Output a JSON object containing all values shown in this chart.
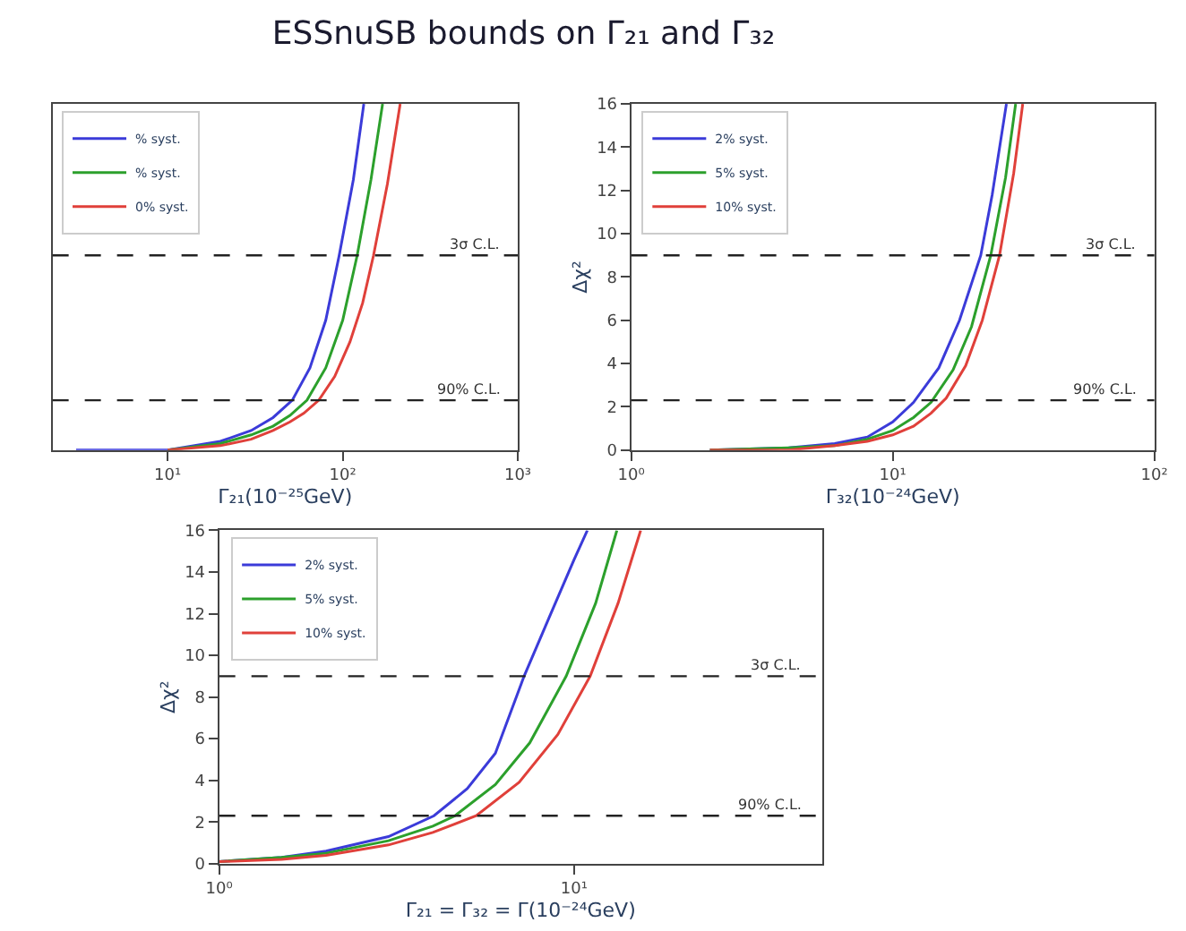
{
  "chart_data": [
    {
      "type": "line",
      "title": "ESSnuSB bounds on Γ₂₁ and Γ₃₂",
      "xlabel": "Γ₂₁(10⁻²⁵GeV)",
      "log": "x",
      "legend": "top left",
      "tick_labels": "x",
      "line_style": "solid",
      "marker": "none",
      "xlim": [
        2.2,
        1000
      ],
      "xticks": [
        {
          "value": 10,
          "label": "10¹"
        },
        {
          "value": 100,
          "label": "10²"
        },
        {
          "value": 1000,
          "label": "10³"
        }
      ],
      "ylim": [
        0,
        16
      ],
      "series": [
        {
          "name": "% syst.",
          "color": "#3b3bd9",
          "x": [
            3,
            10,
            20,
            30,
            40,
            51.5,
            65,
            80,
            95.5,
            115,
            132
          ],
          "values": [
            0,
            0,
            0.4,
            0.9,
            1.5,
            2.3,
            3.8,
            6,
            9,
            12.5,
            16
          ]
        },
        {
          "name": "% syst.",
          "color": "#2ca02c",
          "x": [
            10,
            20,
            30,
            40,
            50,
            62.5,
            80,
            100,
            121,
            145,
            169
          ],
          "values": [
            0,
            0.3,
            0.7,
            1.1,
            1.6,
            2.3,
            3.8,
            6,
            9,
            12.5,
            16
          ]
        },
        {
          "name": "0% syst.",
          "color": "#e0403a",
          "x": [
            10,
            20,
            30,
            40,
            50,
            60,
            73,
            90,
            110,
            130,
            150,
            180,
            213
          ],
          "values": [
            0,
            0.2,
            0.5,
            0.9,
            1.3,
            1.7,
            2.3,
            3.4,
            5,
            6.8,
            9,
            12.3,
            16
          ]
        }
      ],
      "ref_lines": [
        {
          "axis": "y",
          "value": 9,
          "label": "3σ C.L.",
          "line_style": "dashed",
          "color": "#222222"
        },
        {
          "axis": "y",
          "value": 2.3,
          "label": "90% C.L.",
          "line_style": "dashed",
          "color": "#222222"
        }
      ]
    },
    {
      "type": "line",
      "xlabel": "Γ₃₂(10⁻²⁴GeV)",
      "ylabel": "Δχ²",
      "log": "x",
      "legend": "top left",
      "line_style": "solid",
      "marker": "none",
      "xlim": [
        1,
        100
      ],
      "xticks": [
        {
          "value": 1,
          "label": "10⁰"
        },
        {
          "value": 10,
          "label": "10¹"
        },
        {
          "value": 100,
          "label": "10²"
        }
      ],
      "ylim": [
        0,
        16
      ],
      "yticks": [
        0,
        2,
        4,
        6,
        8,
        10,
        12,
        14,
        16
      ],
      "series": [
        {
          "name": "2% syst.",
          "color": "#3b3bd9",
          "x": [
            2,
            4,
            6,
            8,
            10,
            12,
            15,
            18,
            21.7,
            24,
            27.2
          ],
          "values": [
            0,
            0.1,
            0.3,
            0.6,
            1.3,
            2.2,
            3.8,
            6,
            9,
            11.8,
            16
          ]
        },
        {
          "name": "5% syst.",
          "color": "#2ca02c",
          "x": [
            2,
            4,
            6,
            8,
            10,
            12,
            14,
            17,
            20,
            23.7,
            27,
            29.5
          ],
          "values": [
            0,
            0.1,
            0.2,
            0.5,
            0.9,
            1.5,
            2.2,
            3.7,
            5.7,
            9,
            12.6,
            16
          ]
        },
        {
          "name": "10% syst.",
          "color": "#e0403a",
          "x": [
            2,
            4,
            6,
            8,
            10,
            12,
            14,
            16,
            19,
            22,
            25.6,
            29,
            31.4
          ],
          "values": [
            0,
            0,
            0.2,
            0.4,
            0.7,
            1.1,
            1.7,
            2.4,
            3.9,
            6,
            9,
            12.8,
            16
          ]
        }
      ],
      "ref_lines": [
        {
          "axis": "y",
          "value": 9,
          "label": "3σ C.L.",
          "line_style": "dashed",
          "color": "#222222"
        },
        {
          "axis": "y",
          "value": 2.3,
          "label": "90% C.L.",
          "line_style": "dashed",
          "color": "#222222"
        }
      ]
    },
    {
      "type": "line",
      "xlabel": "Γ₂₁ = Γ₃₂ = Γ(10⁻²⁴GeV)",
      "ylabel": "Δχ²",
      "log": "x",
      "legend": "top left",
      "line_style": "solid",
      "marker": "none",
      "xlim": [
        1,
        50
      ],
      "xticks": [
        {
          "value": 1,
          "label": "10⁰"
        },
        {
          "value": 10,
          "label": "10¹"
        }
      ],
      "ylim": [
        0,
        16
      ],
      "yticks": [
        0,
        2,
        4,
        6,
        8,
        10,
        12,
        14,
        16
      ],
      "series": [
        {
          "name": "2% syst.",
          "color": "#3b3bd9",
          "x": [
            1,
            1.5,
            2,
            3,
            4.03,
            5,
            6,
            7.23,
            8.5,
            10,
            10.9
          ],
          "values": [
            0.1,
            0.3,
            0.6,
            1.3,
            2.3,
            3.6,
            5.3,
            9,
            11.8,
            14.6,
            16
          ]
        },
        {
          "name": "5% syst.",
          "color": "#2ca02c",
          "x": [
            1,
            1.5,
            2,
            3,
            4,
            4.62,
            6,
            7.5,
            9.5,
            11.5,
            13.2
          ],
          "values": [
            0.1,
            0.3,
            0.5,
            1.1,
            1.8,
            2.3,
            3.8,
            5.8,
            9,
            12.5,
            16
          ]
        },
        {
          "name": "10% syst.",
          "color": "#e0403a",
          "x": [
            1,
            1.5,
            2,
            3,
            4,
            5.3,
            7,
            9,
            11.1,
            13.3,
            15.4
          ],
          "values": [
            0.1,
            0.2,
            0.4,
            0.9,
            1.5,
            2.3,
            3.9,
            6.2,
            9,
            12.5,
            16
          ]
        }
      ],
      "ref_lines": [
        {
          "axis": "y",
          "value": 9,
          "label": "3σ C.L.",
          "line_style": "dashed",
          "color": "#222222"
        },
        {
          "axis": "y",
          "value": 2.3,
          "label": "90% C.L.",
          "line_style": "dashed",
          "color": "#222222"
        }
      ]
    }
  ]
}
